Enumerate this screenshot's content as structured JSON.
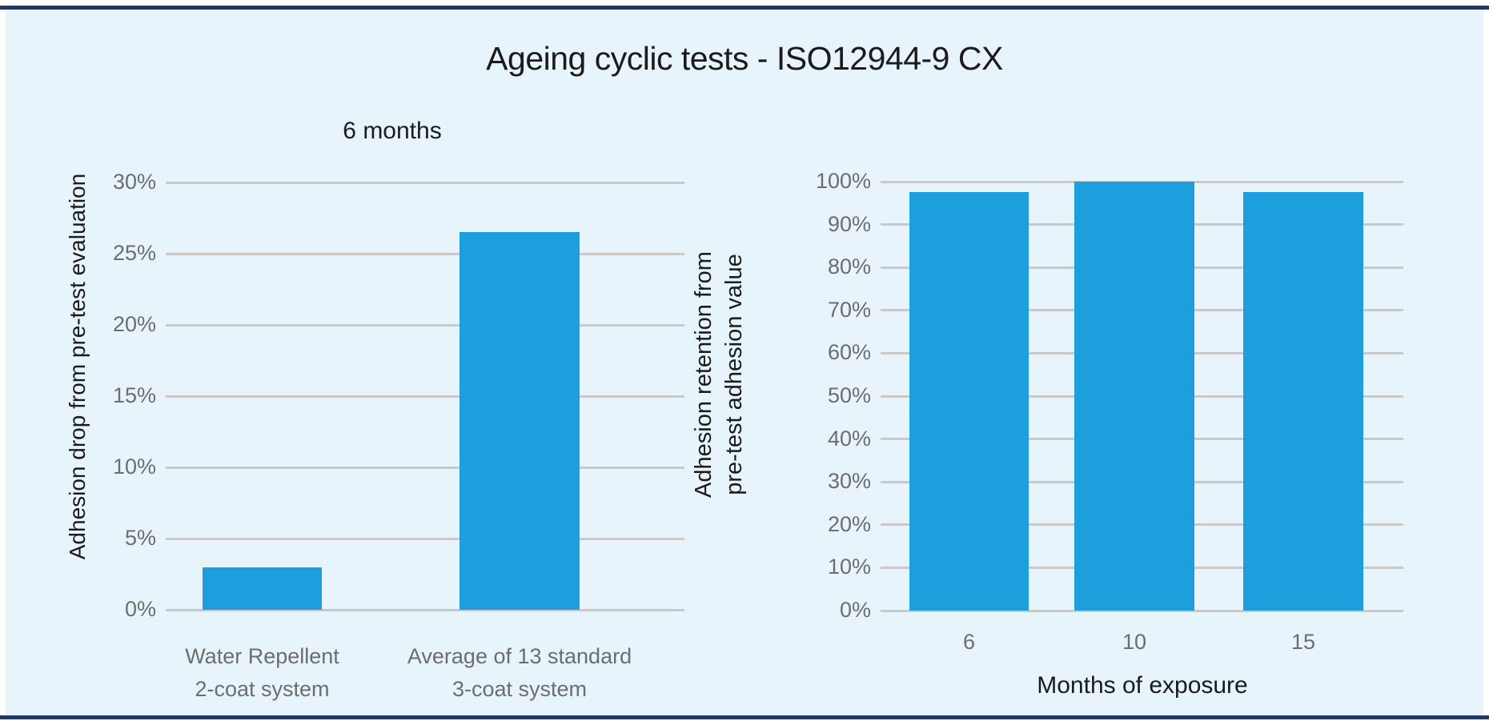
{
  "page": {
    "background_color": "#e8f4fc",
    "edge_line_color": "#1f3864"
  },
  "colors": {
    "bar": "#1d9fdd",
    "gridline": "#c9c9c9",
    "tick_text": "#6d6d6d",
    "dark_text": "#1b1b1b"
  },
  "title": "Ageing cyclic tests - ISO12944-9 CX",
  "chart_data": [
    {
      "type": "bar",
      "title": "6 months",
      "ylabel": "Adhesion drop from pre-test evaluation",
      "ylabel_lines": [
        "Adhesion drop from pre-test evaluation"
      ],
      "xlabel": "",
      "categories": [
        "Water Repellent\n2-coat system",
        "Average of 13 standard\n3-coat system"
      ],
      "category_lines": [
        [
          "Water Repellent",
          "2-coat system"
        ],
        [
          "Average of 13 standard",
          "3-coat system"
        ]
      ],
      "values": [
        3,
        26.5
      ],
      "ylim": [
        0,
        30
      ],
      "ytick_step": 5,
      "ytick_suffix": "%",
      "grid": true,
      "legend": "none"
    },
    {
      "type": "bar",
      "title": "",
      "ylabel": "Adhesion retention from pre-test adhesion value",
      "ylabel_lines": [
        "Adhesion retention from",
        "pre-test adhesion value"
      ],
      "xlabel": "Months of exposure",
      "categories": [
        "6",
        "10",
        "15"
      ],
      "category_lines": [
        [
          "6"
        ],
        [
          "10"
        ],
        [
          "15"
        ]
      ],
      "values": [
        97.5,
        100,
        97.5
      ],
      "ylim": [
        0,
        100
      ],
      "ytick_step": 10,
      "ytick_suffix": "%",
      "grid": true,
      "legend": "none"
    }
  ]
}
